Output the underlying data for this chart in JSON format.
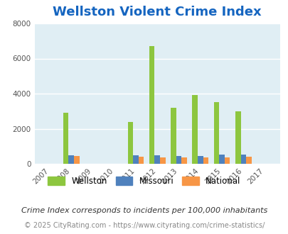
{
  "title": "Wellston Violent Crime Index",
  "years": [
    2007,
    2008,
    2009,
    2010,
    2011,
    2012,
    2013,
    2014,
    2015,
    2016,
    2017
  ],
  "wellston": [
    0,
    2900,
    0,
    0,
    2400,
    6700,
    3200,
    3900,
    3500,
    3000,
    0
  ],
  "missouri": [
    0,
    500,
    0,
    0,
    480,
    480,
    430,
    460,
    520,
    530,
    0
  ],
  "national": [
    0,
    460,
    0,
    0,
    390,
    380,
    370,
    360,
    370,
    390,
    0
  ],
  "bar_width": 0.25,
  "color_wellston": "#8dc63f",
  "color_missouri": "#4f81bd",
  "color_national": "#f79646",
  "ylim": [
    0,
    8000
  ],
  "yticks": [
    0,
    2000,
    4000,
    6000,
    8000
  ],
  "bg_color": "#e0eef4",
  "grid_color": "#ffffff",
  "title_color": "#1565c0",
  "footer_note": "Crime Index corresponds to incidents per 100,000 inhabitants",
  "copyright": "© 2025 CityRating.com - https://www.cityrating.com/crime-statistics/",
  "legend_labels": [
    "Wellston",
    "Missouri",
    "National"
  ],
  "title_fontsize": 13,
  "tick_fontsize": 7.5,
  "footer_fontsize": 8,
  "copyright_fontsize": 7
}
